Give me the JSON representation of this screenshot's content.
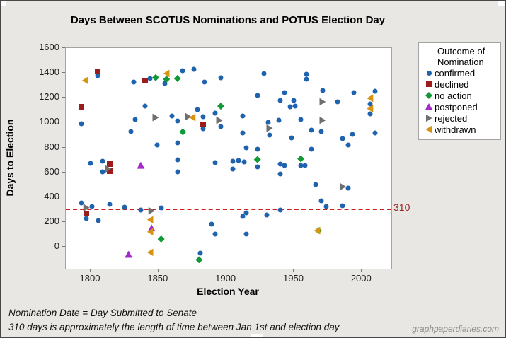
{
  "window": {
    "background": "#e8e7e4",
    "border_color": "#474747"
  },
  "footer": {
    "line1": "Nomination Date = Day Submitted to Senate",
    "line2": "310 days is approximately the length of time between Jan 1st and election day",
    "watermark": "graphpaperdiaries.com"
  },
  "chart_data": {
    "type": "scatter",
    "title": "Days Between SCOTUS Nominations and POTUS Election Day",
    "xlabel": "Election Year",
    "ylabel": "Days to Election",
    "xlim": [
      1782,
      2022
    ],
    "ylim": [
      -177,
      1600
    ],
    "x_ticks": [
      1800,
      1850,
      1900,
      1950,
      2000
    ],
    "y_ticks": [
      0,
      200,
      400,
      600,
      800,
      1000,
      1200,
      1400,
      1600
    ],
    "grid": false,
    "reference_line": {
      "value": 310,
      "label": "310",
      "color": "#cc2020",
      "style": "dashed"
    },
    "legend": {
      "title_lines": [
        "Outcome of",
        "Nomination"
      ],
      "position": "right"
    },
    "series": [
      {
        "name": "confirmed",
        "marker": "circle",
        "color": "#1f63ae",
        "points": [
          [
            1805,
            1378
          ],
          [
            1793,
            991
          ],
          [
            1832,
            1327
          ],
          [
            1844,
            1354
          ],
          [
            1855,
            1317
          ],
          [
            1868,
            1420
          ],
          [
            1876,
            1430
          ],
          [
            1884,
            1326
          ],
          [
            1896,
            1363
          ],
          [
            1928,
            1396
          ],
          [
            1959,
            1390
          ],
          [
            1959,
            1350
          ],
          [
            1840,
            1133
          ],
          [
            1860,
            1053
          ],
          [
            1864,
            1014
          ],
          [
            1879,
            1105
          ],
          [
            1883,
            1048
          ],
          [
            1883,
            950
          ],
          [
            1892,
            1075
          ],
          [
            1896,
            968
          ],
          [
            1864,
            838
          ],
          [
            1849,
            820
          ],
          [
            1830,
            928
          ],
          [
            1833,
            1025
          ],
          [
            1923,
            1220
          ],
          [
            1943,
            1244
          ],
          [
            1940,
            1177
          ],
          [
            1950,
            1180
          ],
          [
            1947,
            1129
          ],
          [
            1951,
            1133
          ],
          [
            1971,
            1259
          ],
          [
            1982,
            1168
          ],
          [
            1994,
            1242
          ],
          [
            2010,
            1254
          ],
          [
            2006,
            1148
          ],
          [
            2006,
            1073
          ],
          [
            1912,
            1053
          ],
          [
            1912,
            915
          ],
          [
            1931,
            1002
          ],
          [
            1932,
            900
          ],
          [
            1939,
            1019
          ],
          [
            1955,
            1025
          ],
          [
            1963,
            940
          ],
          [
            1970,
            930
          ],
          [
            1948,
            875
          ],
          [
            1986,
            869
          ],
          [
            1990,
            823
          ],
          [
            1993,
            903
          ],
          [
            2010,
            916
          ],
          [
            1915,
            800
          ],
          [
            1923,
            785
          ],
          [
            1923,
            644
          ],
          [
            1955,
            655
          ],
          [
            1958,
            655
          ],
          [
            1963,
            786
          ],
          [
            1905,
            690
          ],
          [
            1909,
            695
          ],
          [
            1913,
            685
          ],
          [
            1905,
            627
          ],
          [
            1940,
            665
          ],
          [
            1943,
            657
          ],
          [
            1940,
            589
          ],
          [
            1800,
            670
          ],
          [
            1809,
            688
          ],
          [
            1809,
            604
          ],
          [
            1864,
            700
          ],
          [
            1864,
            604
          ],
          [
            1892,
            680
          ],
          [
            1793,
            353
          ],
          [
            1801,
            323
          ],
          [
            1797,
            230
          ],
          [
            1806,
            209
          ],
          [
            1814,
            344
          ],
          [
            1825,
            319
          ],
          [
            1837,
            296
          ],
          [
            1852,
            315
          ],
          [
            1881,
            -50
          ],
          [
            1889,
            180
          ],
          [
            1892,
            101
          ],
          [
            1912,
            243
          ],
          [
            1915,
            271
          ],
          [
            1930,
            258
          ],
          [
            1940,
            294
          ],
          [
            1915,
            104
          ],
          [
            1966,
            503
          ],
          [
            1990,
            475
          ],
          [
            1970,
            370
          ],
          [
            1974,
            325
          ],
          [
            1986,
            332
          ]
        ]
      },
      {
        "name": "declined",
        "marker": "square",
        "color": "#9c1c1c",
        "points": [
          [
            1805,
            1415
          ],
          [
            1793,
            1128
          ],
          [
            1840,
            1341
          ],
          [
            1883,
            985
          ],
          [
            1814,
            665
          ],
          [
            1814,
            607
          ],
          [
            1797,
            266
          ]
        ]
      },
      {
        "name": "no action",
        "marker": "diamond",
        "color": "#119937",
        "points": [
          [
            1848,
            1363
          ],
          [
            1856,
            1350
          ],
          [
            1864,
            1356
          ],
          [
            1896,
            1133
          ],
          [
            1868,
            926
          ],
          [
            1923,
            703
          ],
          [
            1955,
            709
          ],
          [
            1852,
            63
          ],
          [
            1880,
            -105
          ],
          [
            1968,
            130
          ]
        ]
      },
      {
        "name": "postponed",
        "marker": "triangle-up",
        "color": "#a32cc8",
        "points": [
          [
            1837,
            657
          ],
          [
            1845,
            152
          ],
          [
            1828,
            -60
          ]
        ]
      },
      {
        "name": "rejected",
        "marker": "triangle-right",
        "color": "#6f6f6f",
        "points": [
          [
            1848,
            1042
          ],
          [
            1872,
            1048
          ],
          [
            1895,
            1019
          ],
          [
            1971,
            1168
          ],
          [
            1932,
            955
          ],
          [
            1971,
            1019
          ],
          [
            1813,
            627
          ],
          [
            1797,
            315
          ],
          [
            1845,
            290
          ],
          [
            1986,
            484
          ]
        ]
      },
      {
        "name": "withdrawn",
        "marker": "triangle-left",
        "color": "#d9940f",
        "points": [
          [
            1796,
            1340
          ],
          [
            1856,
            1396
          ],
          [
            1875,
            1042
          ],
          [
            2006,
            1197
          ],
          [
            2006,
            1113
          ],
          [
            1844,
            218
          ],
          [
            1844,
            120
          ],
          [
            1844,
            -45
          ],
          [
            1967,
            130
          ]
        ]
      }
    ]
  }
}
